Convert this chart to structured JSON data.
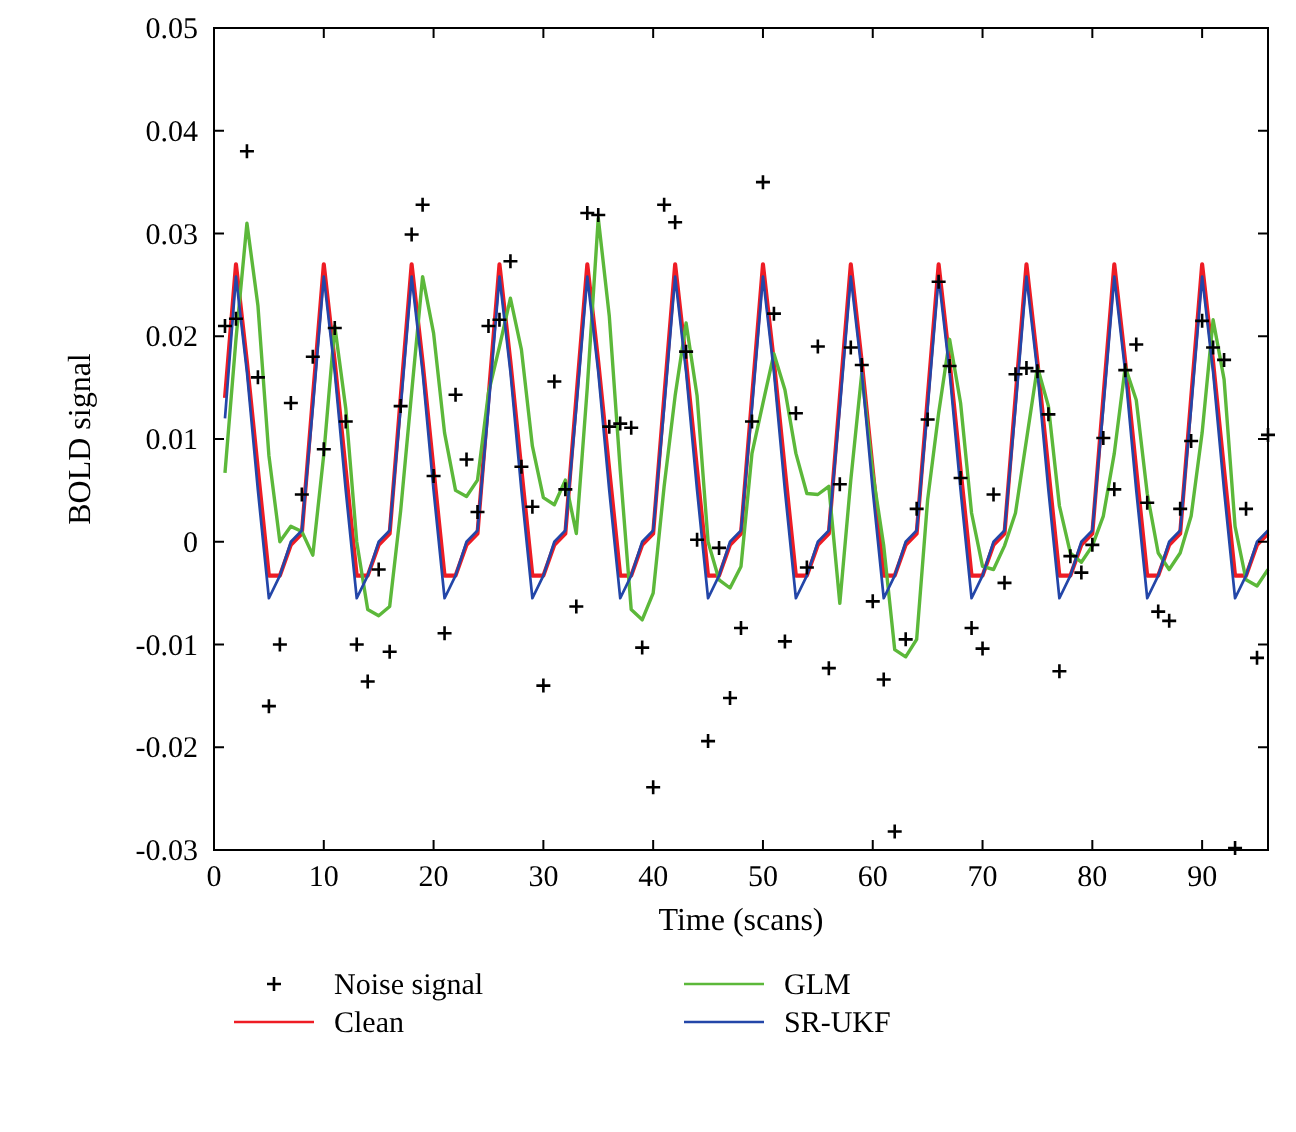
{
  "chart_data": {
    "type": "line",
    "xlabel": "Time (scans)",
    "ylabel": "BOLD signal",
    "x": [
      1,
      2,
      3,
      4,
      5,
      6,
      7,
      8,
      9,
      10,
      11,
      12,
      13,
      14,
      15,
      16,
      17,
      18,
      19,
      20,
      21,
      22,
      23,
      24,
      25,
      26,
      27,
      28,
      29,
      30,
      31,
      32,
      33,
      34,
      35,
      36,
      37,
      38,
      39,
      40,
      41,
      42,
      43,
      44,
      45,
      46,
      47,
      48,
      49,
      50,
      51,
      52,
      53,
      54,
      55,
      56,
      57,
      58,
      59,
      60,
      61,
      62,
      63,
      64,
      65,
      66,
      67,
      68,
      69,
      70,
      71,
      72,
      73,
      74,
      75,
      76,
      77,
      78,
      79,
      80,
      81,
      82,
      83,
      84,
      85,
      86,
      87,
      88,
      89,
      90,
      91,
      92,
      93,
      94,
      95,
      96
    ],
    "xlim": [
      0,
      96
    ],
    "xticks": [
      0,
      10,
      20,
      30,
      40,
      50,
      60,
      70,
      80,
      90
    ],
    "ylim": [
      -0.03,
      0.05
    ],
    "yticks": [
      -0.03,
      -0.02,
      -0.01,
      0,
      0.01,
      0.02,
      0.03,
      0.04,
      0.05
    ],
    "grid": false,
    "legend": "bottom",
    "series": [
      {
        "name": "Noise signal",
        "type": "scatter",
        "marker": "cross",
        "color": "#000000",
        "values": [
          0.021,
          0.0217,
          0.038,
          0.016,
          -0.016,
          -0.01,
          0.0135,
          0.0046,
          0.018,
          0.009,
          0.0208,
          0.0117,
          -0.01,
          -0.0136,
          -0.0027,
          -0.0107,
          0.0132,
          0.0299,
          0.0328,
          0.0064,
          -0.0089,
          0.0143,
          0.008,
          0.0029,
          0.021,
          0.0216,
          0.0273,
          0.0073,
          0.0034,
          -0.014,
          0.0156,
          0.0051,
          -0.0063,
          0.032,
          0.0318,
          0.0112,
          0.0115,
          0.0111,
          -0.0103,
          -0.0239,
          0.0328,
          0.0311,
          0.0185,
          0.0002,
          -0.0194,
          -0.0006,
          -0.0152,
          -0.0084,
          0.0117,
          0.035,
          0.0222,
          -0.0097,
          0.0125,
          -0.0025,
          0.019,
          -0.0123,
          0.0056,
          0.0189,
          0.0172,
          -0.0058,
          -0.0134,
          -0.0282,
          -0.0095,
          0.0032,
          0.0119,
          0.0253,
          0.0171,
          0.0062,
          -0.0084,
          -0.0104,
          0.0046,
          -0.004,
          0.0163,
          0.0169,
          0.0166,
          0.0124,
          -0.0126,
          -0.0014,
          -0.003,
          -0.0003,
          0.0101,
          0.0051,
          0.0167,
          0.0192,
          0.0038,
          -0.0068,
          -0.0077,
          0.0032,
          0.0098,
          0.0215,
          0.0189,
          0.0177,
          -0.0298,
          0.0032,
          -0.0113,
          0.0104
        ]
      },
      {
        "name": "Clean",
        "color": "#ee1c24",
        "values": [
          0.014,
          0.027,
          0.0175,
          0.007,
          -0.0033,
          -0.0033,
          -0.0003,
          0.0008,
          0.014,
          0.027,
          0.0175,
          0.007,
          -0.0033,
          -0.0033,
          -0.0003,
          0.0008,
          0.014,
          0.027,
          0.0175,
          0.007,
          -0.0033,
          -0.0033,
          -0.0003,
          0.0008,
          0.014,
          0.027,
          0.0175,
          0.007,
          -0.0033,
          -0.0033,
          -0.0003,
          0.0008,
          0.014,
          0.027,
          0.0175,
          0.007,
          -0.0033,
          -0.0033,
          -0.0003,
          0.0008,
          0.014,
          0.027,
          0.0175,
          0.007,
          -0.0033,
          -0.0033,
          -0.0003,
          0.0008,
          0.014,
          0.027,
          0.0175,
          0.007,
          -0.0033,
          -0.0033,
          -0.0003,
          0.0008,
          0.014,
          0.027,
          0.0175,
          0.007,
          -0.0033,
          -0.0033,
          -0.0003,
          0.0008,
          0.014,
          0.027,
          0.0175,
          0.007,
          -0.0033,
          -0.0033,
          -0.0003,
          0.0008,
          0.014,
          0.027,
          0.0175,
          0.007,
          -0.0033,
          -0.0033,
          -0.0003,
          0.0008,
          0.014,
          0.027,
          0.0175,
          0.007,
          -0.0033,
          -0.0033,
          -0.0003,
          0.0008,
          0.014,
          0.027,
          0.0175,
          0.007,
          -0.0033,
          -0.0033,
          -0.0003,
          0.0008
        ]
      },
      {
        "name": "GLM",
        "color": "#5cb83a",
        "values": [
          0.0067,
          0.0197,
          0.031,
          0.023,
          0.0084,
          0.0,
          0.0015,
          0.001,
          -0.0013,
          0.0085,
          0.021,
          0.013,
          0.0,
          -0.0066,
          -0.0072,
          -0.0063,
          0.003,
          0.0145,
          0.0258,
          0.0203,
          0.0106,
          0.005,
          0.0044,
          0.006,
          0.0145,
          0.019,
          0.0237,
          0.0187,
          0.0093,
          0.0043,
          0.0036,
          0.006,
          0.0008,
          0.015,
          0.0315,
          0.022,
          0.007,
          -0.0066,
          -0.0076,
          -0.005,
          0.0054,
          0.0142,
          0.0213,
          0.0142,
          0.0,
          -0.0037,
          -0.0045,
          -0.0024,
          0.0086,
          0.0135,
          0.0183,
          0.0148,
          0.0086,
          0.0047,
          0.0046,
          0.0054,
          -0.006,
          0.006,
          0.0164,
          0.0067,
          -0.0004,
          -0.0105,
          -0.0112,
          -0.0095,
          0.0041,
          0.0125,
          0.0197,
          0.0135,
          0.0028,
          -0.0024,
          -0.0027,
          -0.0004,
          0.0028,
          0.0099,
          0.017,
          0.0132,
          0.0035,
          -0.0011,
          -0.002,
          -0.0004,
          0.0025,
          0.0086,
          0.017,
          0.0138,
          0.0047,
          -0.0011,
          -0.0027,
          -0.0011,
          0.0025,
          0.0106,
          0.0216,
          0.0158,
          0.0015,
          -0.0037,
          -0.0043,
          -0.0027
        ]
      },
      {
        "name": "SR-UKF",
        "color": "#2346a8",
        "values": [
          0.012,
          0.0258,
          0.0165,
          0.005,
          -0.0055,
          -0.0033,
          0.0,
          0.0011,
          0.013,
          0.0258,
          0.0165,
          0.005,
          -0.0055,
          -0.0033,
          0.0,
          0.0011,
          0.013,
          0.0258,
          0.0165,
          0.005,
          -0.0055,
          -0.0033,
          0.0,
          0.0011,
          0.013,
          0.0258,
          0.0165,
          0.005,
          -0.0055,
          -0.0033,
          0.0,
          0.0011,
          0.013,
          0.0258,
          0.0165,
          0.005,
          -0.0055,
          -0.0033,
          0.0,
          0.0011,
          0.013,
          0.0258,
          0.0165,
          0.005,
          -0.0055,
          -0.0033,
          0.0,
          0.0011,
          0.013,
          0.0258,
          0.0165,
          0.005,
          -0.0055,
          -0.0033,
          0.0,
          0.0011,
          0.013,
          0.0258,
          0.0165,
          0.005,
          -0.0055,
          -0.0033,
          0.0,
          0.0011,
          0.013,
          0.0258,
          0.0165,
          0.005,
          -0.0055,
          -0.0033,
          0.0,
          0.0011,
          0.013,
          0.0258,
          0.0165,
          0.005,
          -0.0055,
          -0.0033,
          0.0,
          0.0011,
          0.013,
          0.0258,
          0.0165,
          0.005,
          -0.0055,
          -0.0033,
          0.0,
          0.0011,
          0.013,
          0.0258,
          0.0165,
          0.005,
          -0.0055,
          -0.0033,
          0.0,
          0.0011
        ]
      }
    ]
  }
}
